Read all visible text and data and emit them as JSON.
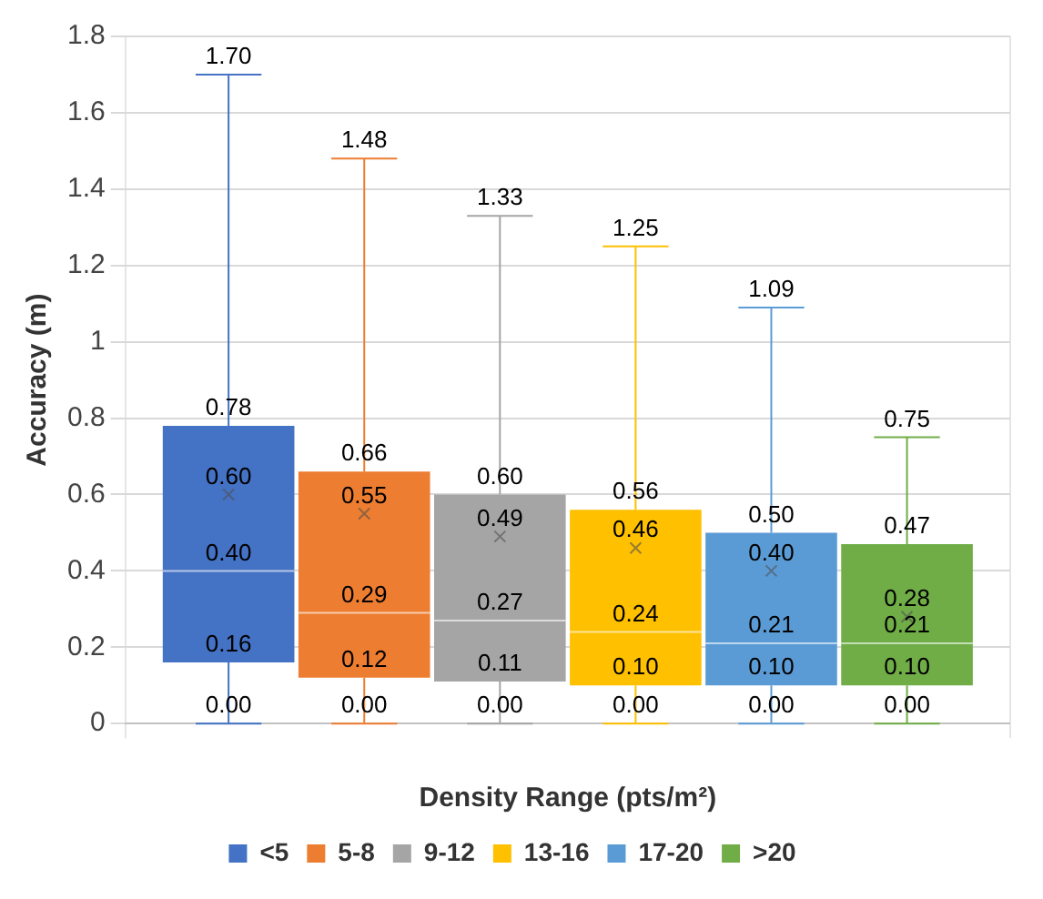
{
  "chart_data": {
    "type": "box",
    "xlabel": "Density Range (pts/m²)",
    "ylabel": "Accuracy (m)",
    "categories": [
      null
    ],
    "series": [
      {
        "name": "<5",
        "color": "#4472c4",
        "boxes": [
          {
            "low": 0,
            "q1": 0.16,
            "median": 0.4,
            "q3": 0.78,
            "high": 1.7,
            "mean": 0.6
          }
        ],
        "value_labels": [
          [
            "0.00",
            "0.16",
            "0.40",
            "0.78",
            "1.70",
            "0.60"
          ]
        ]
      },
      {
        "name": "5-8",
        "color": "#ed7d31",
        "boxes": [
          {
            "low": 0,
            "q1": 0.12,
            "median": 0.29,
            "q3": 0.66,
            "high": 1.48,
            "mean": 0.55
          }
        ],
        "value_labels": [
          [
            "0.00",
            "0.12",
            "0.29",
            "0.66",
            "1.48",
            "0.55"
          ]
        ]
      },
      {
        "name": "9-12",
        "color": "#a5a5a5",
        "boxes": [
          {
            "low": 0,
            "q1": 0.11,
            "median": 0.27,
            "q3": 0.6,
            "high": 1.33,
            "mean": 0.49
          }
        ],
        "value_labels": [
          [
            "0.00",
            "0.11",
            "0.27",
            "0.60",
            "1.33",
            "0.49"
          ]
        ]
      },
      {
        "name": "13-16",
        "color": "#ffc000",
        "boxes": [
          {
            "low": 0,
            "q1": 0.1,
            "median": 0.24,
            "q3": 0.56,
            "high": 1.25,
            "mean": 0.46
          }
        ],
        "value_labels": [
          [
            "0.00",
            "0.10",
            "0.24",
            "0.56",
            "1.25",
            "0.46"
          ]
        ]
      },
      {
        "name": "17-20",
        "color": "#5b9bd5",
        "boxes": [
          {
            "low": 0,
            "q1": 0.1,
            "median": 0.21,
            "q3": 0.5,
            "high": 1.09,
            "mean": 0.4
          }
        ],
        "value_labels": [
          [
            "0.00",
            "0.10",
            "0.21",
            "0.50",
            "1.09",
            "0.40"
          ]
        ]
      },
      {
        "name": ">20",
        "color": "#70ad47",
        "boxes": [
          {
            "low": 0,
            "q1": 0.1,
            "median": 0.21,
            "q3": 0.47,
            "high": 0.75,
            "mean": 0.28
          }
        ],
        "value_labels": [
          [
            "0.00",
            "0.10",
            "0.21",
            "0.47",
            "0.75",
            "0.28"
          ]
        ]
      }
    ],
    "ylim": [
      0,
      1.8
    ],
    "yticks": [
      0,
      0.2,
      0.4,
      0.6,
      0.8,
      1,
      1.2,
      1.4,
      1.6,
      1.8
    ],
    "grid": true,
    "legend": "bottom"
  }
}
